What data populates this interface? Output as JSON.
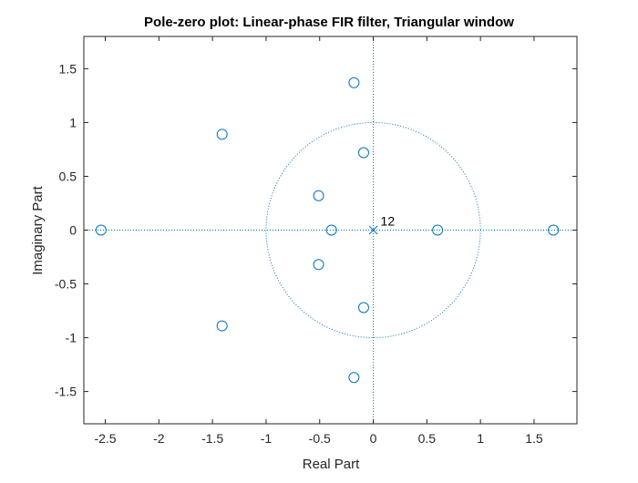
{
  "chart_data": {
    "type": "scatter",
    "title": "Pole-zero plot: Linear-phase FIR filter, Triangular window",
    "xlabel": "Real Part",
    "ylabel": "Imaginary Part",
    "xlim": [
      -2.7,
      1.9
    ],
    "ylim": [
      -1.8,
      1.8
    ],
    "xticks": [
      -2.5,
      -2,
      -1.5,
      -1,
      -0.5,
      0,
      0.5,
      1,
      1.5
    ],
    "xtick_labels": [
      "-2.5",
      "-2",
      "-1.5",
      "-1",
      "-0.5",
      "0",
      "0.5",
      "1",
      "1.5"
    ],
    "yticks": [
      -1.5,
      -1,
      -0.5,
      0,
      0.5,
      1,
      1.5
    ],
    "ytick_labels": [
      "-1.5",
      "-1",
      "-0.5",
      "0",
      "0.5",
      "1",
      "1.5"
    ],
    "grid": false,
    "unit_circle": true,
    "zeros": [
      {
        "x": -2.54,
        "y": 0
      },
      {
        "x": -1.41,
        "y": 0.89
      },
      {
        "x": -1.41,
        "y": -0.89
      },
      {
        "x": -0.51,
        "y": 0.32
      },
      {
        "x": -0.51,
        "y": -0.32
      },
      {
        "x": -0.39,
        "y": 0
      },
      {
        "x": -0.18,
        "y": 1.37
      },
      {
        "x": -0.18,
        "y": -1.37
      },
      {
        "x": -0.09,
        "y": 0.72
      },
      {
        "x": -0.09,
        "y": -0.72
      },
      {
        "x": 0.6,
        "y": 0
      },
      {
        "x": 1.68,
        "y": 0
      }
    ],
    "poles": [
      {
        "x": 0,
        "y": 0,
        "multiplicity_label": "12"
      }
    ],
    "colors": {
      "marker": "#0072bd",
      "axes": "#262626",
      "background": "#ffffff"
    }
  }
}
